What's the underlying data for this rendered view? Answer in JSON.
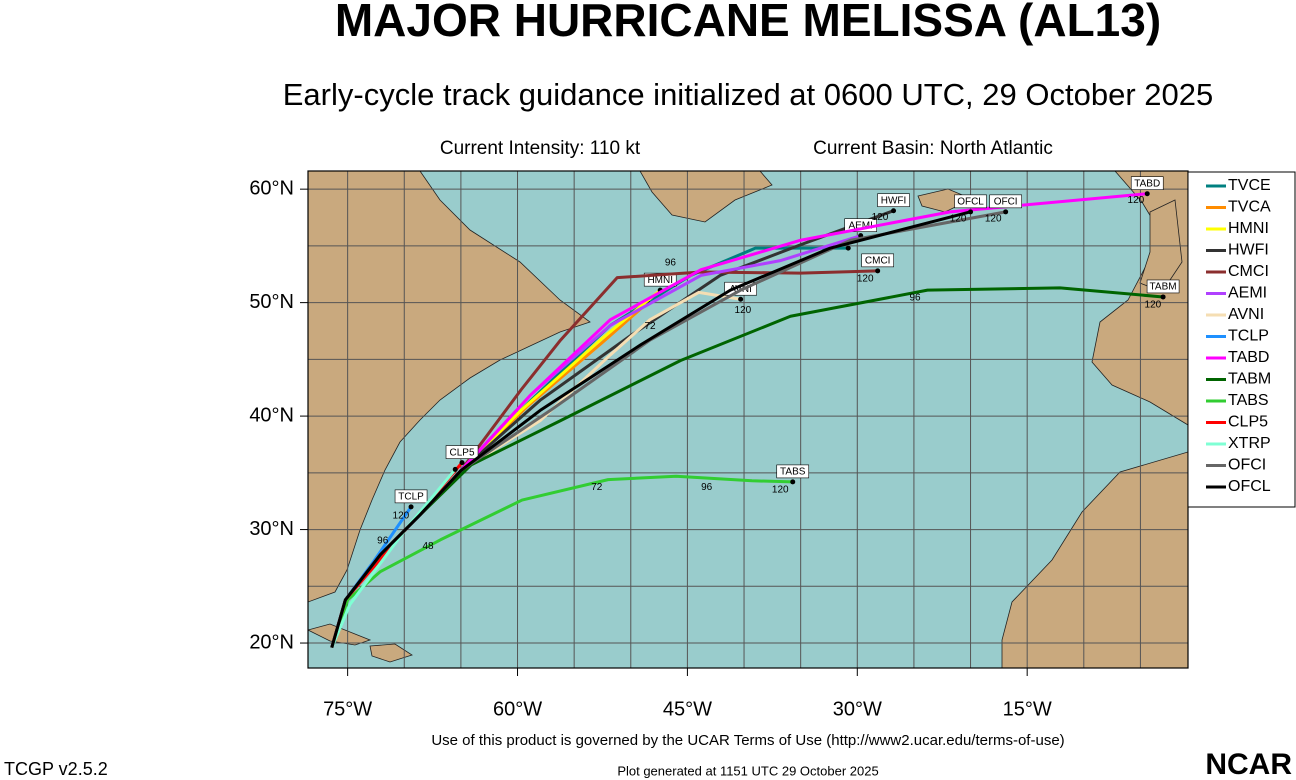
{
  "chart_data": {
    "type": "track",
    "title": "MAJOR HURRICANE MELISSA (AL13)",
    "subtitle": "Early-cycle track guidance initialized at 0600 UTC, 29 October 2025",
    "intensity": "Current Intensity: 110 kt",
    "basin": "Current Basin: North Atlantic",
    "xlim": [
      -78.5,
      -0.8
    ],
    "ylim": [
      17.8,
      61.6
    ],
    "xticks": [
      {
        "value": -75,
        "label": "75°W"
      },
      {
        "value": -60,
        "label": "60°W"
      },
      {
        "value": -45,
        "label": "45°W"
      },
      {
        "value": -30,
        "label": "30°W"
      },
      {
        "value": -15,
        "label": "15°W"
      }
    ],
    "yticks": [
      {
        "value": 20,
        "label": "20°N"
      },
      {
        "value": 30,
        "label": "30°N"
      },
      {
        "value": 40,
        "label": "40°N"
      },
      {
        "value": 50,
        "label": "50°N"
      },
      {
        "value": 60,
        "label": "60°N"
      }
    ],
    "xminor": [
      -75,
      -70,
      -65,
      -60,
      -55,
      -50,
      -45,
      -40,
      -35,
      -30,
      -25,
      -20,
      -15,
      -10,
      -5
    ],
    "yminor": [
      20,
      25,
      30,
      35,
      40,
      45,
      50,
      55,
      60
    ],
    "grid": true,
    "series": [
      {
        "name": "TVCE",
        "color": "#008080",
        "end_label": false,
        "x": [
          -76.4,
          -75.2,
          -72.1,
          -68.6,
          -65.0,
          -58.8,
          -51.8,
          -44.7,
          -39.0,
          -30.8
        ],
        "values": [
          19.6,
          23.8,
          27.8,
          31.3,
          35.2,
          41.4,
          48.0,
          52.4,
          54.8,
          54.8
        ]
      },
      {
        "name": "TVCA",
        "color": "#ff8c00",
        "end_label": false,
        "x": [
          -76.4,
          -75.2,
          -72.1,
          -68.6,
          -65.0,
          -59.2,
          -52.5,
          -48.5
        ],
        "values": [
          19.6,
          23.8,
          27.8,
          31.3,
          35.2,
          40.8,
          46.5,
          50.0
        ]
      },
      {
        "name": "HMNI",
        "color": "#ffff00",
        "end_label": true,
        "x": [
          -76.4,
          -75.2,
          -72.1,
          -68.6,
          -65.0,
          -59.7,
          -52.7,
          -47.4
        ],
        "values": [
          19.6,
          23.8,
          27.8,
          31.3,
          35.2,
          40.5,
          46.7,
          51.1
        ]
      },
      {
        "name": "HWFI",
        "color": "#333333",
        "end_label": true,
        "x": [
          -76.4,
          -75.2,
          -72.1,
          -68.6,
          -65.0,
          -58.0,
          -50.0,
          -42.1,
          -35.0,
          -26.8
        ],
        "values": [
          19.6,
          23.8,
          27.8,
          31.3,
          35.2,
          41.4,
          47.1,
          52.4,
          55.1,
          58.1
        ]
      },
      {
        "name": "CMCI",
        "color": "#8b2e2e",
        "end_label": true,
        "x": [
          -76.4,
          -75.2,
          -72.1,
          -68.6,
          -65.0,
          -59.7,
          -56.2,
          -51.2,
          -43.8,
          -35.0,
          -28.2
        ],
        "values": [
          19.6,
          23.8,
          27.8,
          31.3,
          35.2,
          42.3,
          46.7,
          52.2,
          52.7,
          52.6,
          52.8
        ]
      },
      {
        "name": "AEMI",
        "color": "#b040ff",
        "end_label": true,
        "x": [
          -76.4,
          -75.2,
          -72.1,
          -68.6,
          -65.0,
          -58.8,
          -51.8,
          -43.8,
          -36.8,
          -29.7
        ],
        "values": [
          19.6,
          23.8,
          27.8,
          31.3,
          35.2,
          41.9,
          48.0,
          52.4,
          53.7,
          55.9
        ]
      },
      {
        "name": "AVNI",
        "color": "#f5deb3",
        "end_label": true,
        "x": [
          -76.4,
          -75.2,
          -72.1,
          -68.6,
          -65.0,
          -58.0,
          -51.8,
          -48.3,
          -44.0,
          -40.3
        ],
        "values": [
          19.6,
          23.8,
          27.8,
          31.3,
          35.2,
          39.6,
          45.4,
          48.5,
          50.9,
          50.3
        ]
      },
      {
        "name": "TCLP",
        "color": "#1e90ff",
        "end_label": true,
        "x": [
          -76.4,
          -75.2,
          -72.7,
          -69.4
        ],
        "values": [
          19.6,
          23.8,
          27.2,
          32.0
        ]
      },
      {
        "name": "TABD",
        "color": "#ff00ff",
        "end_label": true,
        "x": [
          -76.4,
          -75.2,
          -72.1,
          -68.6,
          -65.0,
          -58.8,
          -51.8,
          -43.8,
          -35.0,
          -21.8,
          -4.4
        ],
        "values": [
          19.6,
          23.8,
          27.8,
          31.3,
          35.2,
          41.9,
          48.5,
          52.9,
          55.5,
          58.0,
          59.6
        ]
      },
      {
        "name": "TABM",
        "color": "#006400",
        "end_label": true,
        "x": [
          -76.4,
          -75.2,
          -72.1,
          -68.6,
          -64.1,
          -56.2,
          -45.6,
          -35.9,
          -23.8,
          -12.1,
          -3.0
        ],
        "values": [
          19.6,
          23.8,
          27.8,
          31.3,
          35.7,
          39.6,
          44.9,
          48.8,
          51.1,
          51.3,
          50.5
        ]
      },
      {
        "name": "TABS",
        "color": "#32cd32",
        "end_label": true,
        "x": [
          -76.4,
          -75.0,
          -72.1,
          -66.8,
          -59.6,
          -52.0,
          -46.0,
          -39.3,
          -35.7
        ],
        "values": [
          19.6,
          23.8,
          26.3,
          29.1,
          32.6,
          34.4,
          34.7,
          34.3,
          34.2
        ]
      },
      {
        "name": "CLP5",
        "color": "#ff0000",
        "end_label": true,
        "x": [
          -76.4,
          -75.2,
          -70.3,
          -64.9
        ],
        "values": [
          19.6,
          23.8,
          29.5,
          35.9
        ]
      },
      {
        "name": "XTRP",
        "color": "#7fffd4",
        "end_label": false,
        "x": [
          -76.4,
          -74.8,
          -69.9,
          -65.5
        ],
        "values": [
          19.6,
          23.4,
          30.0,
          35.3
        ]
      },
      {
        "name": "OFCI",
        "color": "#666666",
        "end_label": true,
        "x": [
          -76.4,
          -75.2,
          -72.1,
          -68.6,
          -65.0,
          -57.1,
          -48.3,
          -40.3,
          -30.6,
          -16.9
        ],
        "values": [
          19.6,
          23.8,
          27.8,
          31.3,
          35.2,
          40.5,
          46.7,
          51.1,
          55.5,
          58.0
        ]
      },
      {
        "name": "OFCL",
        "color": "#000000",
        "end_label": true,
        "x": [
          -76.4,
          -75.2,
          -72.1,
          -68.6,
          -65.0,
          -58.0,
          -49.1,
          -41.2,
          -32.4,
          -20.0
        ],
        "values": [
          19.6,
          23.8,
          27.8,
          31.3,
          35.2,
          40.5,
          46.3,
          51.1,
          54.8,
          58.0
        ]
      }
    ],
    "hour_labels": [
      {
        "text": 72,
        "lon": -53.0,
        "lat": 33.7
      },
      {
        "text": 96,
        "lon": -43.3,
        "lat": 33.7
      },
      {
        "text": 120,
        "lon": -36.8,
        "lat": 33.5
      },
      {
        "text": 96,
        "lon": -24.9,
        "lat": 50.4
      },
      {
        "text": 120,
        "lon": -3.9,
        "lat": 49.8
      },
      {
        "text": 120,
        "lon": -28.0,
        "lat": 57.5
      },
      {
        "text": 120,
        "lon": -21.1,
        "lat": 57.4
      },
      {
        "text": 120,
        "lon": -18.0,
        "lat": 57.4
      },
      {
        "text": 120,
        "lon": -5.4,
        "lat": 59.0
      },
      {
        "text": 120,
        "lon": -29.3,
        "lat": 52.1
      },
      {
        "text": 120,
        "lon": -40.1,
        "lat": 49.3
      },
      {
        "text": 120,
        "lon": -70.3,
        "lat": 31.2
      },
      {
        "text": 96,
        "lon": -71.9,
        "lat": 29.0
      },
      {
        "text": 48,
        "lon": -67.9,
        "lat": 28.5
      },
      {
        "text": 96,
        "lon": -46.5,
        "lat": 53.5
      },
      {
        "text": 72,
        "lon": -48.3,
        "lat": 47.9
      }
    ]
  },
  "footer": {
    "terms": "Use of this product is governed by the UCAR Terms of Use (http://www2.ucar.edu/terms-of-use)",
    "version": "TCGP v2.5.2",
    "generated": "Plot generated at 1151 UTC   29 October 2025",
    "logo": "NCAR"
  }
}
